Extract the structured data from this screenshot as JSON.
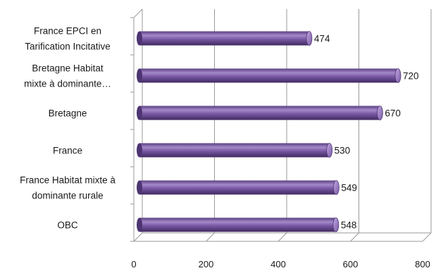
{
  "chart_data": {
    "type": "bar",
    "orientation": "horizontal",
    "style": "3d-cylinder",
    "bar_color": "#7b5aa6",
    "bar_color_dark": "#4d3472",
    "bar_color_light": "#b59ad6",
    "grid_color": "#9a9a9a",
    "categories": [
      [
        "France EPCI en",
        "Tarification Incitative"
      ],
      [
        "Bretagne Habitat",
        "mixte à dominante…"
      ],
      [
        "Bretagne"
      ],
      [
        "France"
      ],
      [
        "France Habitat mixte à",
        "dominante rurale"
      ],
      [
        "OBC"
      ]
    ],
    "values": [
      474,
      720,
      670,
      530,
      549,
      548
    ],
    "xlim": [
      0,
      800
    ],
    "xticks": [
      0,
      200,
      400,
      600,
      800
    ],
    "grid": true,
    "legend": "none"
  }
}
